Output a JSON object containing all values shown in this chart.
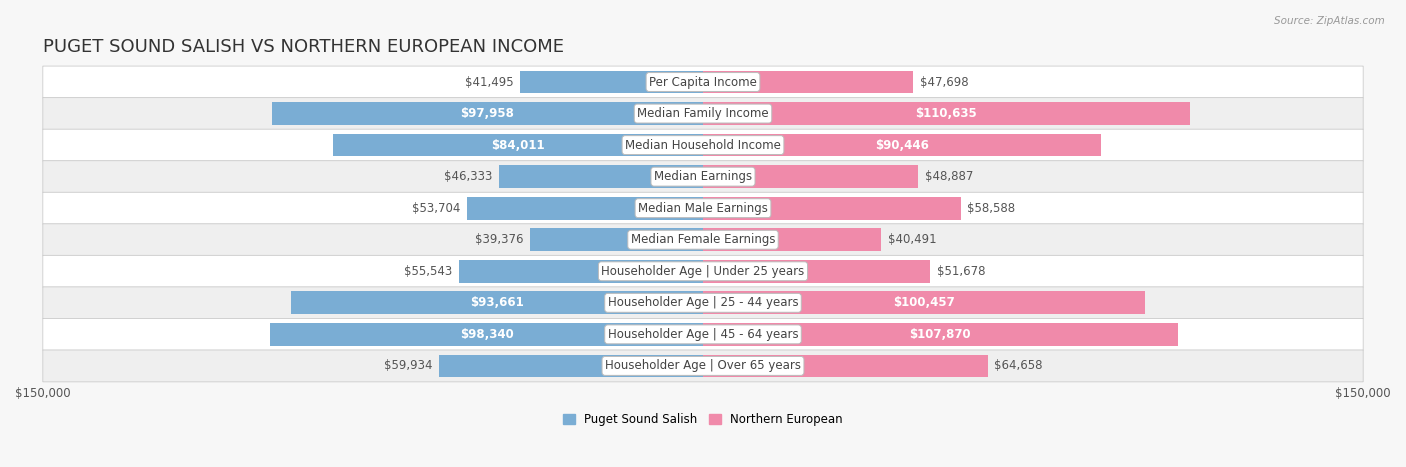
{
  "title": "PUGET SOUND SALISH VS NORTHERN EUROPEAN INCOME",
  "source": "Source: ZipAtlas.com",
  "categories": [
    "Per Capita Income",
    "Median Family Income",
    "Median Household Income",
    "Median Earnings",
    "Median Male Earnings",
    "Median Female Earnings",
    "Householder Age | Under 25 years",
    "Householder Age | 25 - 44 years",
    "Householder Age | 45 - 64 years",
    "Householder Age | Over 65 years"
  ],
  "left_values": [
    41495,
    97958,
    84011,
    46333,
    53704,
    39376,
    55543,
    93661,
    98340,
    59934
  ],
  "right_values": [
    47698,
    110635,
    90446,
    48887,
    58588,
    40491,
    51678,
    100457,
    107870,
    64658
  ],
  "left_labels": [
    "$41,495",
    "$97,958",
    "$84,011",
    "$46,333",
    "$53,704",
    "$39,376",
    "$55,543",
    "$93,661",
    "$98,340",
    "$59,934"
  ],
  "right_labels": [
    "$47,698",
    "$110,635",
    "$90,446",
    "$48,887",
    "$58,588",
    "$40,491",
    "$51,678",
    "$100,457",
    "$107,870",
    "$64,658"
  ],
  "max_val": 150000,
  "left_color": "#7aadd4",
  "right_color": "#f08aaa",
  "left_color_dark": "#5b8fc4",
  "right_color_dark": "#e85a8a",
  "inside_threshold": 65000,
  "legend_left": "Puget Sound Salish",
  "legend_right": "Northern European",
  "row_even_color": "#ffffff",
  "row_odd_color": "#efefef",
  "row_border_color": "#cccccc",
  "category_box_color": "#ffffff",
  "category_text_color": "#444444",
  "bar_height": 0.72,
  "title_fontsize": 13,
  "label_fontsize": 8.5,
  "category_fontsize": 8.5,
  "axis_label_fontsize": 8.5
}
